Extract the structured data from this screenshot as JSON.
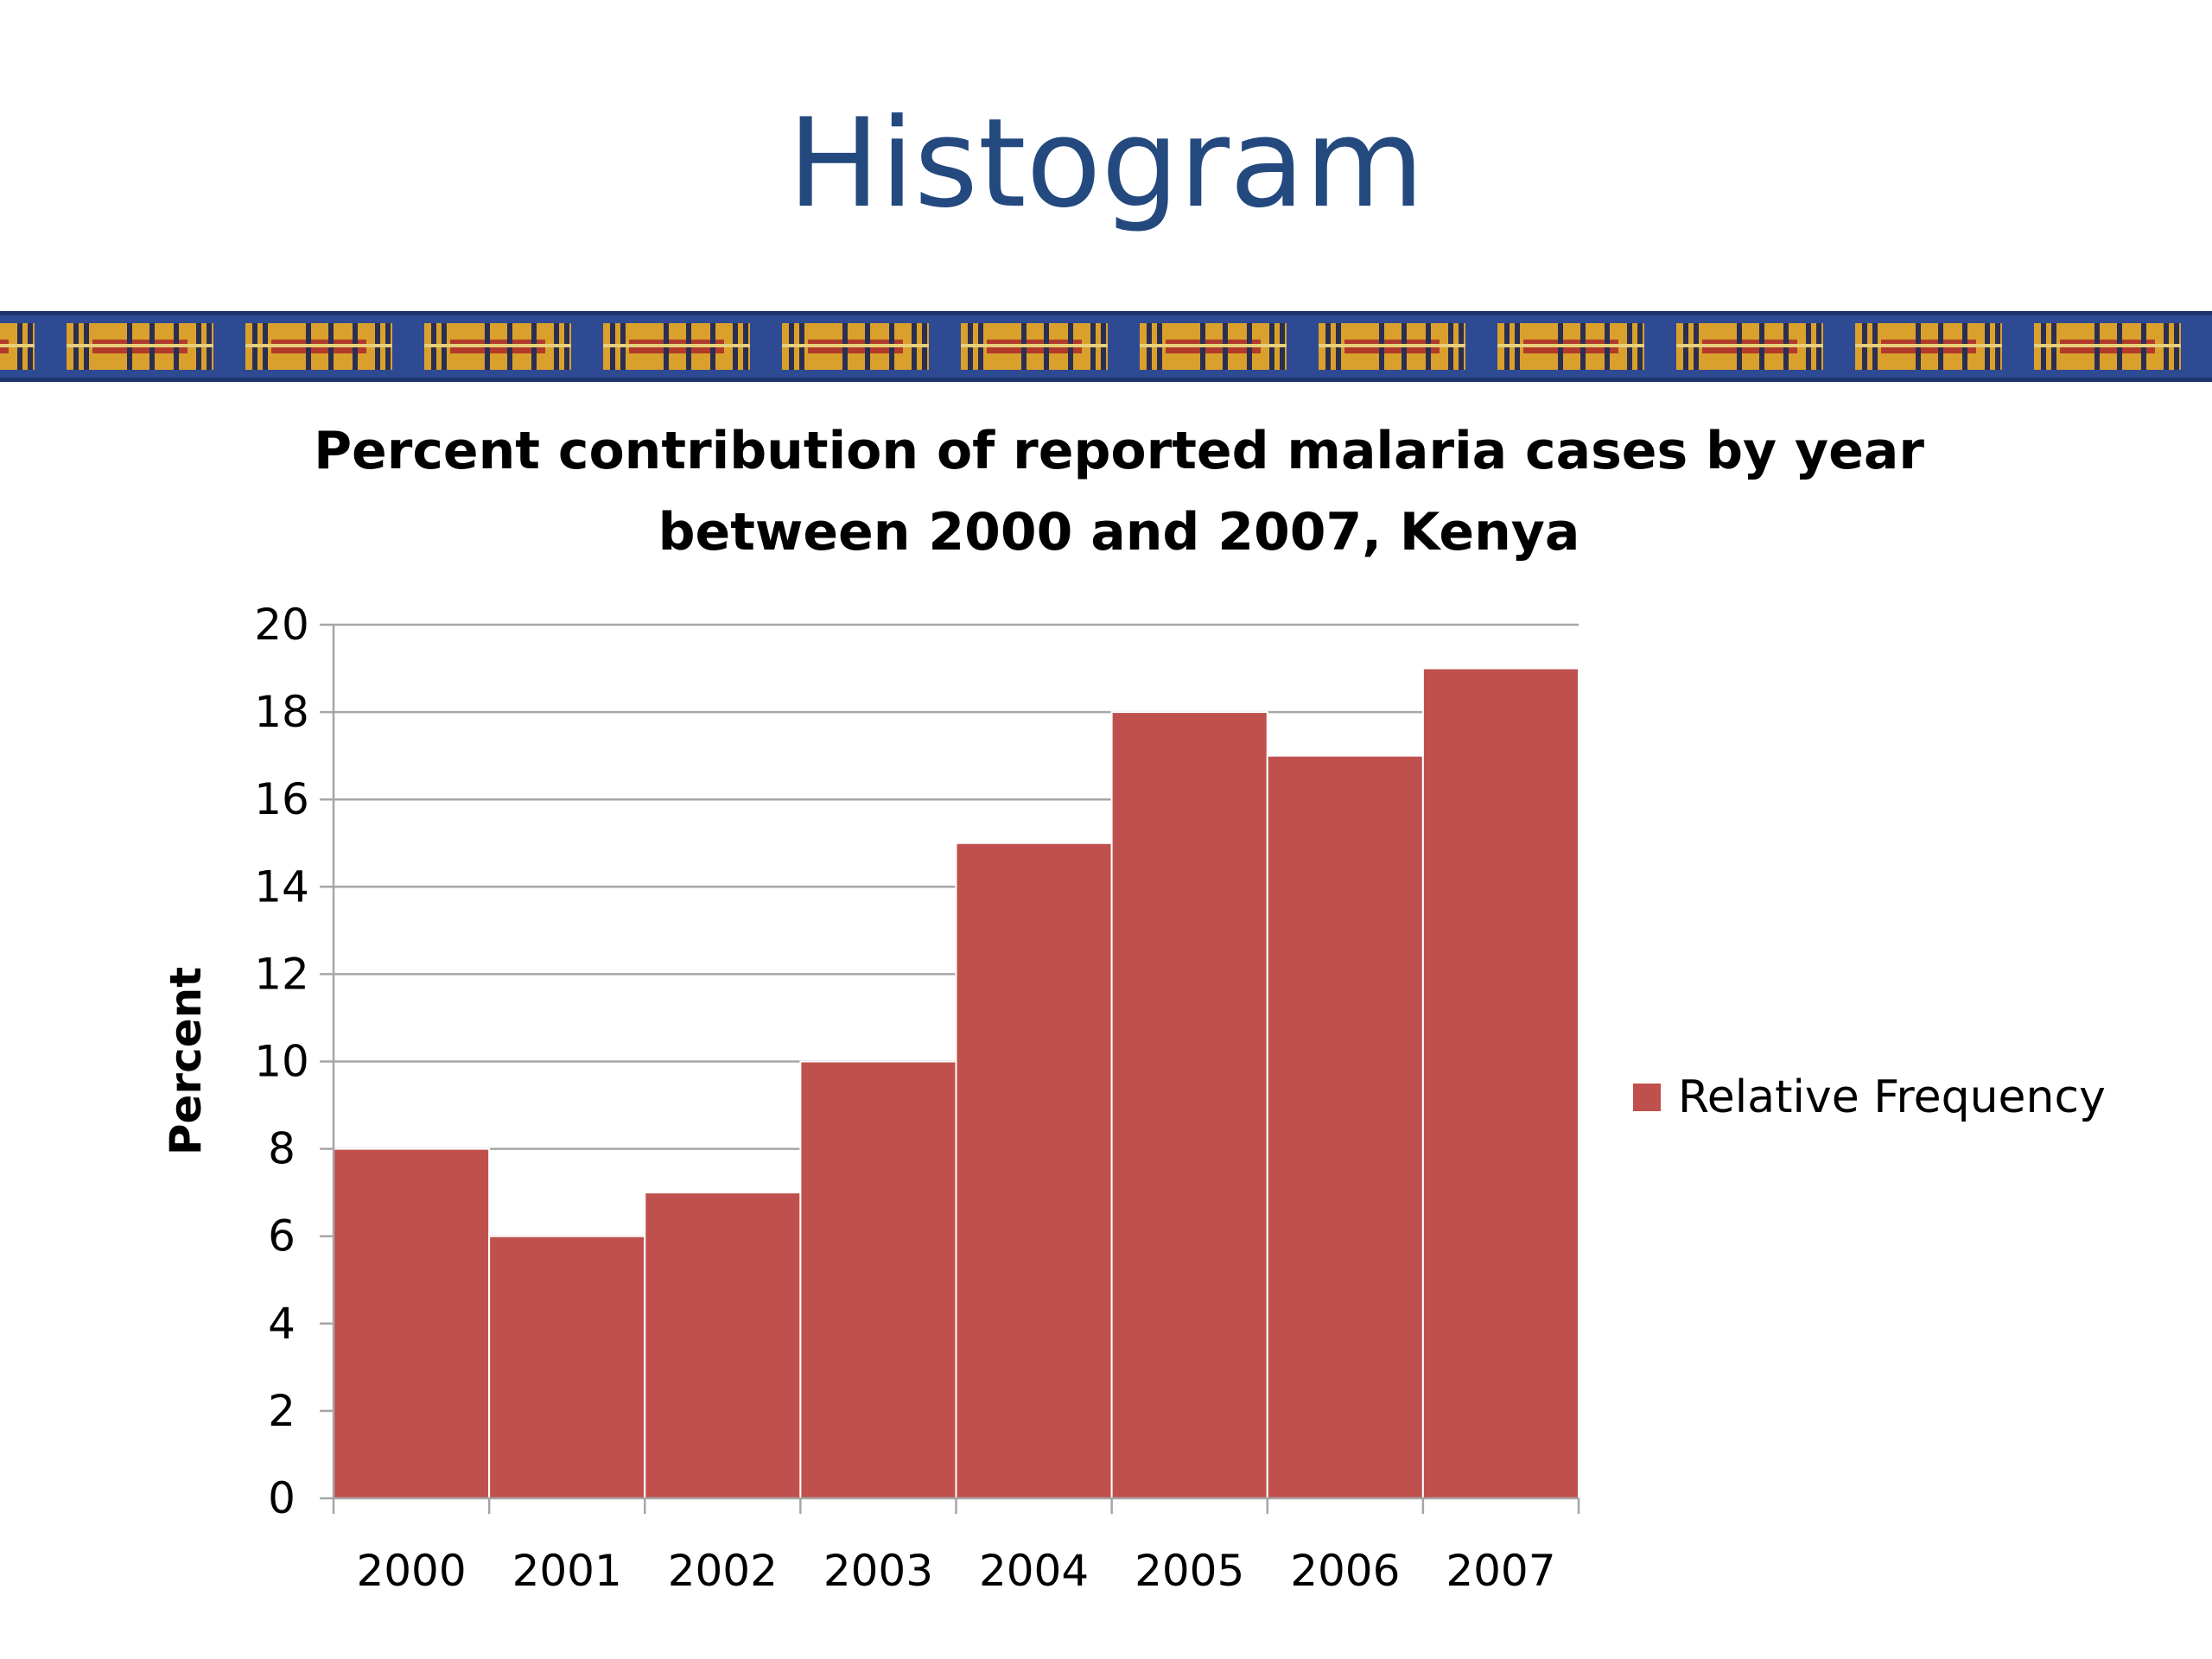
{
  "slide": {
    "title": "Histogram"
  },
  "colors": {
    "title": "#23497f",
    "bar": "#c0504d",
    "banner_base": "#2e4a93",
    "banner_gold": "#d9a12c",
    "banner_red": "#b23a2a"
  },
  "chart_data": {
    "type": "bar",
    "title": "Percent contribution of reported malaria cases by year between 2000 and 2007, Kenya",
    "title_lines": [
      "Percent contribution of reported malaria cases by year",
      "between 2000 and 2007, Kenya"
    ],
    "xlabel": "",
    "ylabel": "Percent",
    "categories": [
      "2000",
      "2001",
      "2002",
      "2003",
      "2004",
      "2005",
      "2006",
      "2007"
    ],
    "series": [
      {
        "name": "Relative Frequency",
        "values": [
          8,
          6,
          7,
          10,
          15,
          18,
          17,
          19
        ]
      }
    ],
    "ylim": [
      0,
      20
    ],
    "yticks": [
      "0",
      "2",
      "4",
      "6",
      "8",
      "10",
      "12",
      "14",
      "16",
      "18",
      "20"
    ],
    "grid": true,
    "legend_position": "right"
  }
}
